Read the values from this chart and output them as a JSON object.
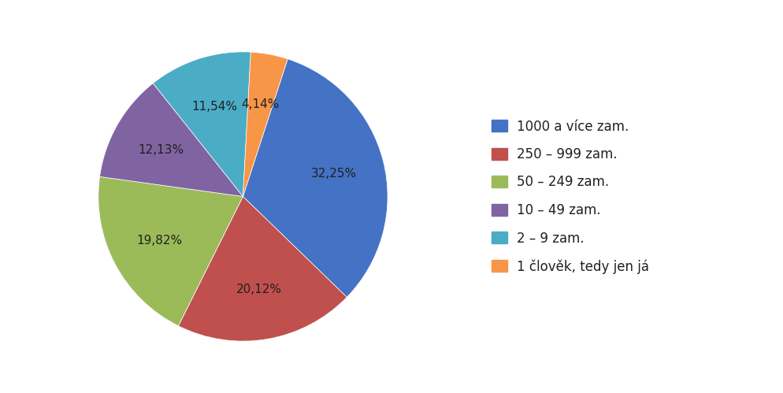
{
  "labels": [
    "1000 a více zam.",
    "250 – 999 zam.",
    "50 – 249 zam.",
    "10 – 49 zam.",
    "2 – 9 zam.",
    "1 člověk, tedy jen já"
  ],
  "values": [
    32.25,
    20.12,
    19.82,
    12.13,
    11.54,
    4.14
  ],
  "colors": [
    "#4472C4",
    "#C0504D",
    "#9BBB59",
    "#8064A2",
    "#4BACC6",
    "#F79646"
  ],
  "autopct_labels": [
    "32,25%",
    "20,12%",
    "19,82%",
    "12,13%",
    "11,54%",
    "4,14%"
  ],
  "background_color": "#FFFFFF",
  "outer_bg": "#3a3a3a",
  "text_color": "#1F2020",
  "legend_fontsize": 12,
  "autopct_fontsize": 11,
  "startangle": 72
}
